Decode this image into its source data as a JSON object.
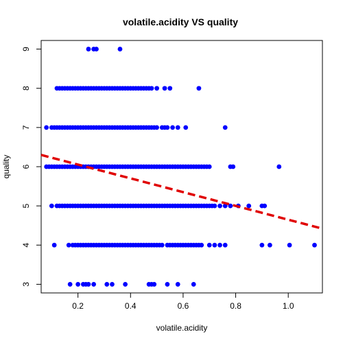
{
  "chart_data": {
    "type": "scatter",
    "title": "volatile.acidity VS quality",
    "xlabel": "volatile.acidity",
    "ylabel": "quality",
    "xlim": [
      0.06,
      1.13
    ],
    "ylim": [
      2.78,
      9.22
    ],
    "x_ticks": [
      "0.2",
      "0.4",
      "0.6",
      "0.8",
      "1.0"
    ],
    "y_ticks": [
      "3",
      "4",
      "5",
      "6",
      "7",
      "8",
      "9"
    ],
    "x_tick_values": [
      0.2,
      0.4,
      0.6,
      0.8,
      1.0
    ],
    "y_tick_values": [
      3,
      4,
      5,
      6,
      7,
      8,
      9
    ],
    "point_color": "#0000ff",
    "line_color": "#e00000",
    "regression_line": {
      "x": [
        0.06,
        1.13
      ],
      "y": [
        6.3,
        4.42
      ]
    },
    "series": [
      {
        "quality": 9,
        "x": [
          0.24,
          0.26,
          0.27,
          0.36
        ]
      },
      {
        "quality": 8,
        "x": [
          0.12,
          0.13,
          0.14,
          0.15,
          0.16,
          0.17,
          0.18,
          0.19,
          0.2,
          0.21,
          0.22,
          0.23,
          0.24,
          0.25,
          0.26,
          0.27,
          0.28,
          0.29,
          0.3,
          0.31,
          0.32,
          0.33,
          0.34,
          0.35,
          0.36,
          0.37,
          0.38,
          0.39,
          0.4,
          0.41,
          0.42,
          0.43,
          0.44,
          0.45,
          0.46,
          0.47,
          0.48,
          0.5,
          0.53,
          0.55,
          0.66
        ]
      },
      {
        "quality": 7,
        "x": [
          0.08,
          0.1,
          0.11,
          0.12,
          0.13,
          0.14,
          0.15,
          0.16,
          0.17,
          0.18,
          0.19,
          0.2,
          0.21,
          0.22,
          0.23,
          0.24,
          0.25,
          0.26,
          0.27,
          0.28,
          0.29,
          0.3,
          0.31,
          0.32,
          0.33,
          0.34,
          0.35,
          0.36,
          0.37,
          0.38,
          0.39,
          0.4,
          0.41,
          0.42,
          0.43,
          0.44,
          0.45,
          0.46,
          0.47,
          0.48,
          0.49,
          0.5,
          0.52,
          0.53,
          0.54,
          0.56,
          0.58,
          0.61,
          0.76
        ]
      },
      {
        "quality": 6,
        "x": [
          0.08,
          0.09,
          0.1,
          0.11,
          0.12,
          0.13,
          0.14,
          0.15,
          0.16,
          0.17,
          0.18,
          0.19,
          0.2,
          0.21,
          0.22,
          0.23,
          0.24,
          0.25,
          0.26,
          0.27,
          0.28,
          0.29,
          0.3,
          0.31,
          0.32,
          0.33,
          0.34,
          0.35,
          0.36,
          0.37,
          0.38,
          0.39,
          0.4,
          0.41,
          0.42,
          0.43,
          0.44,
          0.45,
          0.46,
          0.47,
          0.48,
          0.49,
          0.5,
          0.51,
          0.52,
          0.53,
          0.54,
          0.55,
          0.56,
          0.57,
          0.58,
          0.59,
          0.6,
          0.61,
          0.62,
          0.63,
          0.64,
          0.65,
          0.66,
          0.67,
          0.68,
          0.69,
          0.7,
          0.78,
          0.79,
          0.965
        ]
      },
      {
        "quality": 5,
        "x": [
          0.1,
          0.12,
          0.13,
          0.14,
          0.15,
          0.16,
          0.17,
          0.18,
          0.19,
          0.2,
          0.21,
          0.22,
          0.23,
          0.24,
          0.25,
          0.26,
          0.27,
          0.28,
          0.29,
          0.3,
          0.31,
          0.32,
          0.33,
          0.34,
          0.35,
          0.36,
          0.37,
          0.38,
          0.39,
          0.4,
          0.41,
          0.42,
          0.43,
          0.44,
          0.45,
          0.46,
          0.47,
          0.48,
          0.49,
          0.5,
          0.51,
          0.52,
          0.53,
          0.54,
          0.55,
          0.56,
          0.57,
          0.58,
          0.59,
          0.6,
          0.61,
          0.62,
          0.63,
          0.64,
          0.65,
          0.66,
          0.67,
          0.68,
          0.69,
          0.7,
          0.71,
          0.72,
          0.74,
          0.76,
          0.78,
          0.81,
          0.85,
          0.9,
          0.91
        ]
      },
      {
        "quality": 4,
        "x": [
          0.11,
          0.165,
          0.18,
          0.19,
          0.2,
          0.21,
          0.22,
          0.23,
          0.24,
          0.25,
          0.26,
          0.27,
          0.28,
          0.29,
          0.3,
          0.31,
          0.32,
          0.33,
          0.34,
          0.35,
          0.36,
          0.37,
          0.38,
          0.39,
          0.4,
          0.41,
          0.42,
          0.43,
          0.44,
          0.45,
          0.46,
          0.47,
          0.48,
          0.49,
          0.5,
          0.51,
          0.52,
          0.54,
          0.55,
          0.56,
          0.57,
          0.58,
          0.59,
          0.6,
          0.61,
          0.62,
          0.63,
          0.64,
          0.65,
          0.66,
          0.67,
          0.7,
          0.72,
          0.74,
          0.76,
          0.9,
          0.93,
          1.005,
          1.1
        ]
      },
      {
        "quality": 3,
        "x": [
          0.17,
          0.2,
          0.22,
          0.23,
          0.24,
          0.26,
          0.31,
          0.33,
          0.38,
          0.47,
          0.48,
          0.49,
          0.54,
          0.58,
          0.64
        ]
      }
    ]
  }
}
